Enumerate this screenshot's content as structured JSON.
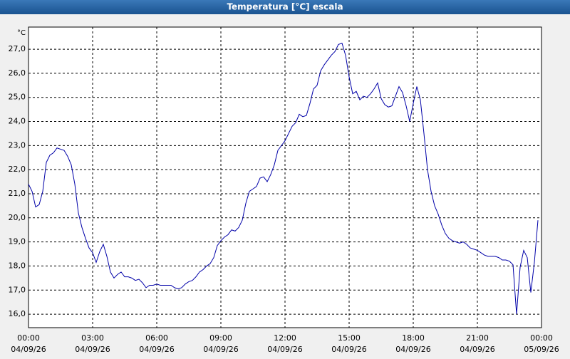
{
  "chart_data": {
    "type": "line",
    "title": "Temperatura [°C] escala",
    "y_unit": "°C",
    "x": [
      0,
      10,
      20,
      30,
      40,
      50,
      60,
      70,
      80,
      90,
      100,
      110,
      120,
      130,
      140,
      150,
      160,
      170,
      180,
      190,
      200,
      210,
      220,
      230,
      240,
      250,
      260,
      270,
      280,
      290,
      300,
      310,
      320,
      330,
      340,
      350,
      360,
      370,
      380,
      390,
      400,
      410,
      420,
      430,
      440,
      450,
      460,
      470,
      480,
      490,
      500,
      510,
      520,
      530,
      540,
      550,
      560,
      570,
      580,
      590,
      600,
      610,
      620,
      630,
      640,
      650,
      660,
      670,
      680,
      690,
      700,
      710,
      720,
      730,
      740,
      750,
      760,
      770,
      780,
      790,
      800,
      810,
      820,
      830,
      840,
      850,
      860,
      870,
      880,
      890,
      900,
      910,
      920,
      930,
      940,
      950,
      960,
      970,
      980,
      990,
      1000,
      1010,
      1020,
      1030,
      1040,
      1050,
      1060,
      1070,
      1080,
      1090,
      1100,
      1110,
      1120,
      1130,
      1140,
      1150,
      1160,
      1170,
      1180,
      1190,
      1200,
      1210,
      1220,
      1230,
      1240,
      1250,
      1260,
      1270,
      1280,
      1290,
      1300,
      1310,
      1320,
      1330,
      1340,
      1350,
      1360,
      1370,
      1380,
      1390,
      1400,
      1410,
      1420,
      1430
    ],
    "series": [
      {
        "name": "Temperatura",
        "color": "#0000a8",
        "values": [
          21.4,
          21.1,
          20.45,
          20.55,
          21.1,
          22.3,
          22.6,
          22.7,
          22.9,
          22.85,
          22.8,
          22.55,
          22.2,
          21.4,
          20.2,
          19.6,
          19.15,
          18.75,
          18.55,
          18.15,
          18.6,
          18.9,
          18.4,
          17.75,
          17.5,
          17.65,
          17.75,
          17.55,
          17.55,
          17.5,
          17.4,
          17.45,
          17.3,
          17.1,
          17.2,
          17.2,
          17.25,
          17.2,
          17.2,
          17.2,
          17.2,
          17.1,
          17.05,
          17.1,
          17.25,
          17.35,
          17.4,
          17.55,
          17.75,
          17.85,
          18.0,
          18.1,
          18.35,
          18.85,
          19.05,
          19.2,
          19.3,
          19.5,
          19.45,
          19.6,
          19.9,
          20.6,
          21.1,
          21.2,
          21.3,
          21.65,
          21.7,
          21.5,
          21.8,
          22.2,
          22.8,
          23.0,
          23.2,
          23.5,
          23.8,
          23.95,
          24.3,
          24.2,
          24.25,
          24.75,
          25.35,
          25.5,
          26.1,
          26.35,
          26.55,
          26.75,
          26.9,
          27.2,
          27.25,
          26.75,
          25.85,
          25.15,
          25.25,
          24.9,
          25.05,
          25.0,
          25.15,
          25.35,
          25.6,
          24.95,
          24.7,
          24.6,
          24.65,
          25.05,
          25.45,
          25.2,
          24.65,
          24.0,
          24.75,
          25.45,
          24.9,
          23.5,
          22.0,
          21.1,
          20.5,
          20.15,
          19.7,
          19.35,
          19.15,
          19.05,
          19.0,
          18.95,
          19.0,
          18.9,
          18.75,
          18.7,
          18.65,
          18.55,
          18.45,
          18.4,
          18.4,
          18.4,
          18.35,
          18.25,
          18.25,
          18.2,
          18.05,
          16.0,
          17.95,
          18.65,
          18.35,
          16.9,
          18.15,
          19.9
        ]
      }
    ],
    "xlim": [
      0,
      1440
    ],
    "xticks": [
      {
        "value": 0,
        "label": "00:00",
        "date": "04/09/26"
      },
      {
        "value": 180,
        "label": "03:00",
        "date": "04/09/26"
      },
      {
        "value": 360,
        "label": "06:00",
        "date": "04/09/26"
      },
      {
        "value": 540,
        "label": "09:00",
        "date": "04/09/26"
      },
      {
        "value": 720,
        "label": "12:00",
        "date": "04/09/26"
      },
      {
        "value": 900,
        "label": "15:00",
        "date": "04/09/26"
      },
      {
        "value": 1080,
        "label": "18:00",
        "date": "04/09/26"
      },
      {
        "value": 1260,
        "label": "21:00",
        "date": "04/09/26"
      },
      {
        "value": 1440,
        "label": "00:00",
        "date": "05/09/26"
      }
    ],
    "ylim": [
      15.44,
      27.92
    ],
    "yticks": [
      {
        "value": 16,
        "label": "16,0"
      },
      {
        "value": 17,
        "label": "17,0"
      },
      {
        "value": 18,
        "label": "18,0"
      },
      {
        "value": 19,
        "label": "19,0"
      },
      {
        "value": 20,
        "label": "20,0"
      },
      {
        "value": 21,
        "label": "21,0"
      },
      {
        "value": 22,
        "label": "22,0"
      },
      {
        "value": 23,
        "label": "23,0"
      },
      {
        "value": 24,
        "label": "24,0"
      },
      {
        "value": 25,
        "label": "25,0"
      },
      {
        "value": 26,
        "label": "26,0"
      },
      {
        "value": 27,
        "label": "27,0"
      }
    ],
    "grid": true
  }
}
